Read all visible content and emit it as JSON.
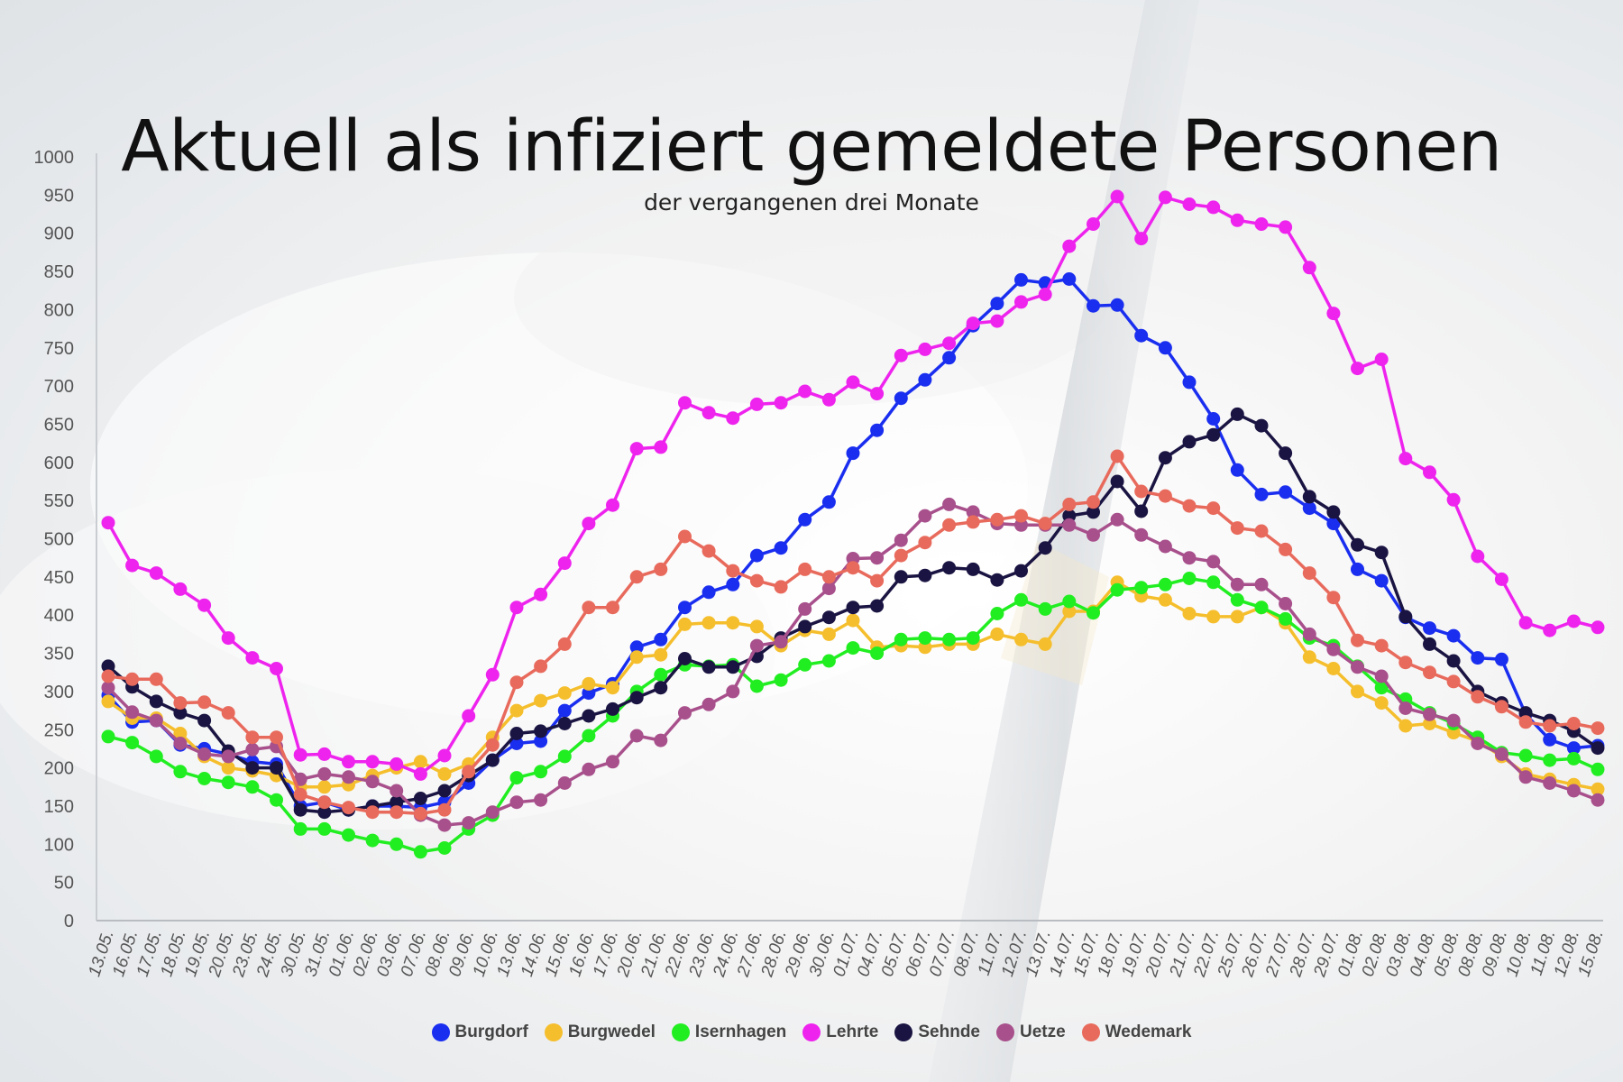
{
  "title": "Aktuell als infiziert gemeldete Personen",
  "subtitle": "der vergangenen drei Monate",
  "chart_data": {
    "type": "line",
    "title": "Aktuell als infiziert gemeldete Personen",
    "subtitle": "der vergangenen drei Monate",
    "xlabel": "",
    "ylabel": "",
    "ylim": [
      0,
      1000
    ],
    "yticks": [
      0,
      50,
      100,
      150,
      200,
      250,
      300,
      350,
      400,
      450,
      500,
      550,
      600,
      650,
      700,
      750,
      800,
      850,
      900,
      950,
      1000
    ],
    "legend_position": "bottom",
    "grid": false,
    "categories": [
      "13.05.",
      "16.05.",
      "17.05.",
      "18.05.",
      "19.05.",
      "20.05.",
      "23.05.",
      "24.05.",
      "30.05.",
      "31.05.",
      "01.06.",
      "02.06.",
      "03.06.",
      "07.06.",
      "08.06.",
      "09.06.",
      "10.06.",
      "13.06.",
      "14.06.",
      "15.06.",
      "16.06.",
      "17.06.",
      "20.06.",
      "21.06.",
      "22.06.",
      "23.06.",
      "24.06.",
      "27.06.",
      "28.06.",
      "29.06.",
      "30.06.",
      "01.07.",
      "04.07.",
      "05.07.",
      "06.07.",
      "07.07.",
      "08.07.",
      "11.07.",
      "12.07.",
      "13.07.",
      "14.07.",
      "15.07.",
      "18.07.",
      "19.07.",
      "20.07.",
      "21.07.",
      "22.07.",
      "25.07.",
      "26.07.",
      "27.07.",
      "28.07.",
      "29.07.",
      "01.08.",
      "02.08.",
      "03.08.",
      "04.08.",
      "05.08.",
      "08.08.",
      "09.08.",
      "10.08.",
      "11.08.",
      "12.08.",
      "15.08."
    ],
    "series": [
      {
        "name": "Burgdorf",
        "color": "#1a2ef0",
        "values": [
          295,
          260,
          262,
          230,
          225,
          218,
          208,
          205,
          150,
          155,
          145,
          150,
          150,
          148,
          155,
          180,
          210,
          232,
          235,
          275,
          298,
          310,
          358,
          368,
          410,
          430,
          440,
          478,
          488,
          525,
          548,
          612,
          642,
          684,
          708,
          737,
          779,
          808,
          839,
          835,
          840,
          805,
          806,
          766,
          750,
          705,
          657,
          590,
          558,
          561,
          540,
          520,
          460,
          445,
          397,
          383,
          373,
          344,
          342,
          270,
          237,
          226,
          229
        ]
      },
      {
        "name": "Burgwedel",
        "color": "#f5be2c",
        "values": [
          287,
          265,
          265,
          245,
          215,
          200,
          196,
          190,
          175,
          175,
          178,
          190,
          200,
          208,
          192,
          205,
          240,
          275,
          288,
          298,
          310,
          305,
          345,
          348,
          388,
          390,
          390,
          385,
          360,
          380,
          375,
          393,
          358,
          360,
          358,
          362,
          362,
          375,
          368,
          362,
          405,
          405,
          443,
          425,
          420,
          402,
          398,
          398,
          410,
          390,
          345,
          330,
          300,
          285,
          255,
          258,
          246,
          235,
          215,
          192,
          185,
          178,
          172
        ]
      },
      {
        "name": "Isernhagen",
        "color": "#21ee21",
        "values": [
          241,
          233,
          215,
          195,
          186,
          181,
          175,
          158,
          120,
          120,
          112,
          105,
          100,
          90,
          95,
          120,
          138,
          187,
          195,
          215,
          242,
          268,
          300,
          322,
          335,
          333,
          335,
          307,
          315,
          335,
          340,
          357,
          350,
          368,
          370,
          368,
          370,
          402,
          420,
          408,
          418,
          403,
          433,
          436,
          440,
          448,
          443,
          420,
          410,
          395,
          370,
          360,
          333,
          305,
          290,
          272,
          258,
          240,
          220,
          216,
          210,
          212,
          198
        ]
      },
      {
        "name": "Lehrte",
        "color": "#ee23ee",
        "values": [
          521,
          465,
          455,
          434,
          413,
          370,
          344,
          330,
          217,
          218,
          208,
          208,
          205,
          192,
          216,
          268,
          322,
          410,
          427,
          468,
          520,
          544,
          618,
          620,
          678,
          665,
          658,
          676,
          678,
          693,
          682,
          705,
          690,
          740,
          748,
          756,
          782,
          785,
          810,
          820,
          883,
          912,
          948,
          893,
          947,
          938,
          934,
          917,
          912,
          908,
          855,
          795,
          723,
          735,
          605,
          587,
          551,
          477,
          447,
          390,
          380,
          392,
          384
        ]
      },
      {
        "name": "Sehnde",
        "color": "#1a1442",
        "values": [
          333,
          306,
          287,
          272,
          262,
          222,
          200,
          200,
          145,
          142,
          145,
          150,
          155,
          160,
          170,
          190,
          210,
          245,
          248,
          258,
          268,
          277,
          292,
          305,
          343,
          332,
          332,
          346,
          370,
          385,
          397,
          410,
          412,
          450,
          452,
          462,
          460,
          446,
          458,
          488,
          530,
          535,
          575,
          536,
          606,
          627,
          636,
          663,
          648,
          612,
          555,
          535,
          492,
          482,
          398,
          362,
          340,
          300,
          285,
          272,
          262,
          248,
          226
        ]
      },
      {
        "name": "Uetze",
        "color": "#a8508c",
        "values": [
          305,
          273,
          262,
          232,
          218,
          215,
          224,
          228,
          185,
          192,
          188,
          182,
          170,
          138,
          125,
          128,
          142,
          155,
          158,
          180,
          198,
          208,
          242,
          236,
          272,
          283,
          300,
          360,
          365,
          408,
          435,
          474,
          475,
          498,
          530,
          545,
          535,
          520,
          518,
          518,
          518,
          505,
          525,
          505,
          490,
          475,
          470,
          440,
          440,
          415,
          375,
          355,
          332,
          320,
          278,
          270,
          262,
          232,
          218,
          188,
          180,
          170,
          158
        ]
      },
      {
        "name": "Wedemark",
        "color": "#e86a5c",
        "values": [
          320,
          316,
          316,
          285,
          286,
          272,
          240,
          240,
          165,
          155,
          148,
          142,
          142,
          140,
          145,
          195,
          230,
          312,
          333,
          362,
          410,
          410,
          450,
          460,
          503,
          484,
          458,
          445,
          437,
          460,
          450,
          462,
          445,
          478,
          495,
          518,
          522,
          525,
          530,
          520,
          545,
          548,
          608,
          562,
          556,
          543,
          540,
          514,
          510,
          486,
          455,
          423,
          367,
          360,
          338,
          325,
          313,
          293,
          280,
          260,
          255,
          258,
          252
        ]
      }
    ]
  }
}
